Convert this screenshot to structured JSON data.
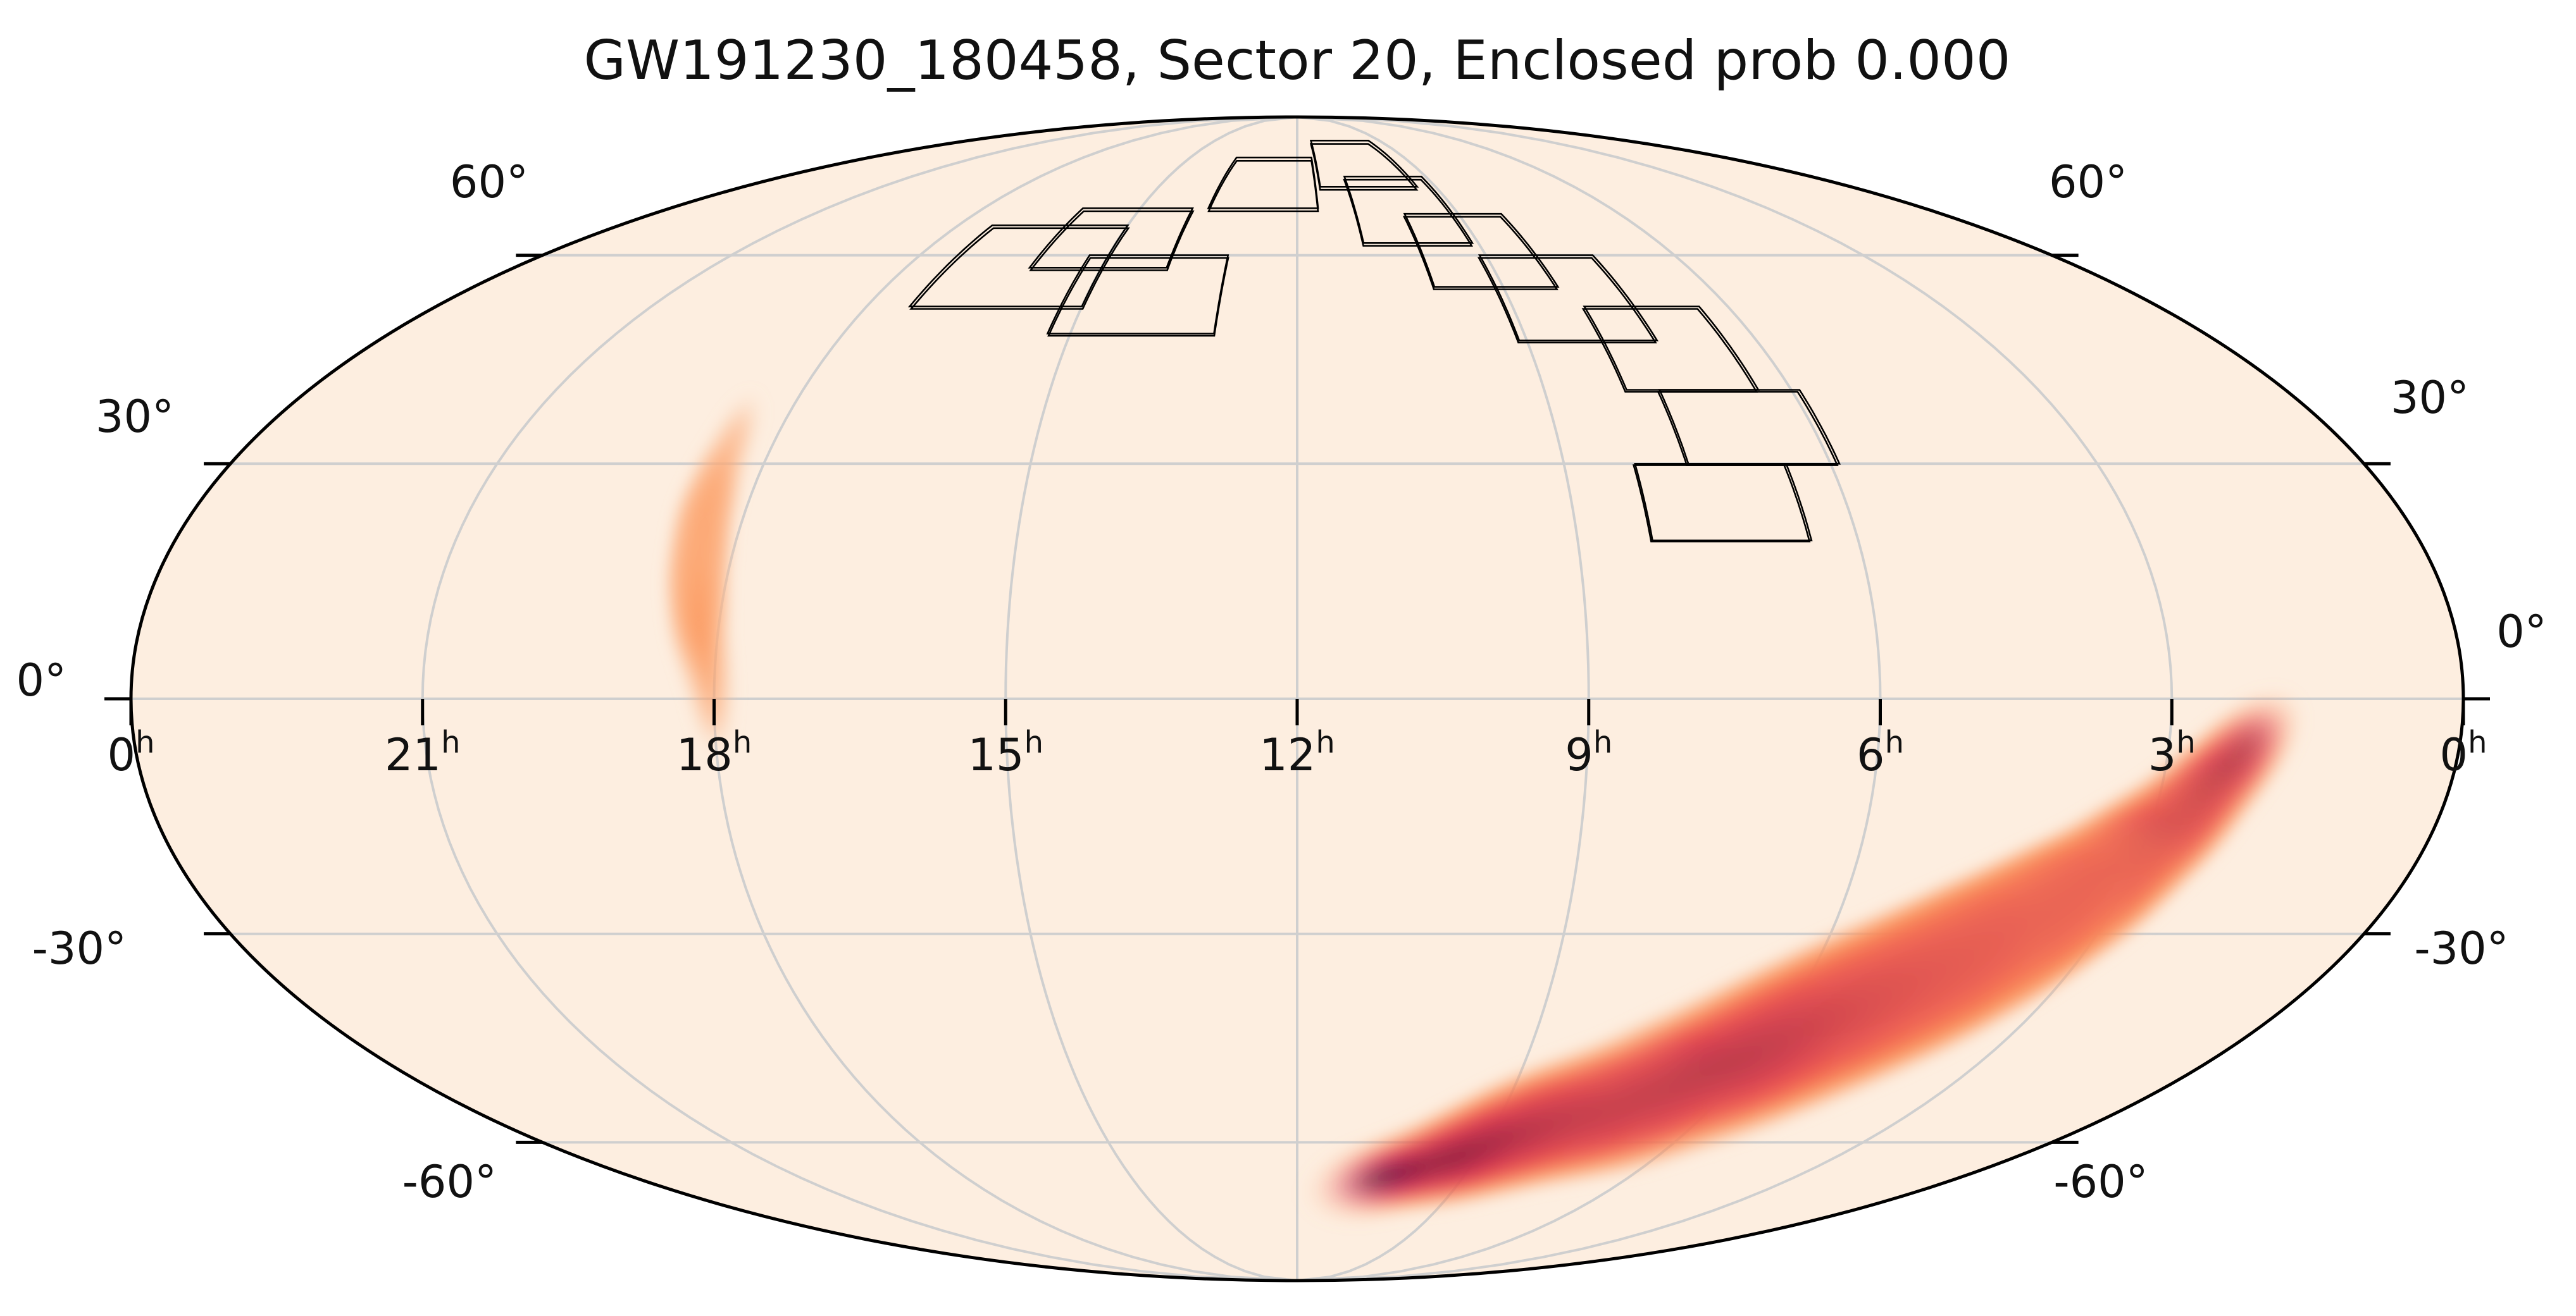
{
  "title": "GW191230_180458, Sector 20, Enclosed prob 0.000",
  "colors": {
    "background": "#fdeee0",
    "outline": "#000000",
    "grid": "#cfcfcf",
    "footprint": "#000000",
    "colormap": [
      "#fdeee0",
      "#fcc39e",
      "#fb8b4d",
      "#ea3f4d",
      "#b5134e",
      "#6e0c3c",
      "#2a0718"
    ]
  },
  "map": {
    "projection": "mollweide",
    "ra_tick_labels": [
      {
        "text": "0",
        "sup": "h",
        "ra_h": 24
      },
      {
        "text": "21",
        "sup": "h",
        "ra_h": 21
      },
      {
        "text": "18",
        "sup": "h",
        "ra_h": 18
      },
      {
        "text": "15",
        "sup": "h",
        "ra_h": 15
      },
      {
        "text": "12",
        "sup": "h",
        "ra_h": 12
      },
      {
        "text": "9",
        "sup": "h",
        "ra_h": 9
      },
      {
        "text": "6",
        "sup": "h",
        "ra_h": 6
      },
      {
        "text": "3",
        "sup": "h",
        "ra_h": 3
      },
      {
        "text": "0",
        "sup": "h",
        "ra_h": 0
      }
    ],
    "dec_tick_labels_left": [
      {
        "text": "60°",
        "dec": 60
      },
      {
        "text": "30°",
        "dec": 30
      },
      {
        "text": "0°",
        "dec": 0
      },
      {
        "text": "-30°",
        "dec": -30
      },
      {
        "text": "-60°",
        "dec": -60
      }
    ],
    "dec_tick_labels_right": [
      {
        "text": "60°",
        "dec": 60
      },
      {
        "text": "30°",
        "dec": 30
      },
      {
        "text": "0°",
        "dec": 0
      },
      {
        "text": "-30°",
        "dec": -30
      },
      {
        "text": "-60°",
        "dec": -60
      }
    ],
    "grid_ra_h": [
      3,
      6,
      9,
      12,
      15,
      18,
      21
    ],
    "grid_dec": [
      -60,
      -30,
      30,
      60
    ],
    "probability_regions": [
      {
        "id": "south-arc",
        "peak": 1.0,
        "path": [
          [
            2.2,
            -6
          ],
          [
            2.8,
            -16
          ],
          [
            3.4,
            -24
          ],
          [
            4.0,
            -30
          ],
          [
            4.7,
            -36
          ],
          [
            5.5,
            -42
          ],
          [
            6.3,
            -48
          ],
          [
            7.3,
            -54
          ],
          [
            8.4,
            -58
          ],
          [
            9.5,
            -63
          ],
          [
            10.8,
            -67
          ]
        ]
      },
      {
        "id": "north-blob",
        "peak": 0.45,
        "path": [
          [
            18.5,
            36
          ],
          [
            18.45,
            28
          ],
          [
            18.4,
            22
          ],
          [
            18.3,
            15
          ],
          [
            18.2,
            9
          ],
          [
            18.05,
            2
          ],
          [
            18.0,
            -4
          ]
        ]
      }
    ],
    "camera_footprints": [
      {
        "ra_min_h": 13.1,
        "ra_max_h": 15.3,
        "dec_min": 48,
        "dec_max": 60
      },
      {
        "ra_min_h": 15.0,
        "ra_max_h": 17.4,
        "dec_min": 52,
        "dec_max": 65
      },
      {
        "ra_min_h": 14.0,
        "ra_max_h": 16.1,
        "dec_min": 58,
        "dec_max": 68
      },
      {
        "ra_min_h": 11.6,
        "ra_max_h": 13.7,
        "dec_min": 68,
        "dec_max": 78
      },
      {
        "ra_min_h": 9.4,
        "ra_max_h": 11.5,
        "dec_min": 72,
        "dec_max": 82
      },
      {
        "ra_min_h": 6.5,
        "ra_max_h": 8.2,
        "dec_min": 20,
        "dec_max": 30
      },
      {
        "ra_min_h": 5.9,
        "ra_max_h": 7.6,
        "dec_min": 30,
        "dec_max": 40
      },
      {
        "ra_min_h": 6.4,
        "ra_max_h": 8.0,
        "dec_min": 40,
        "dec_max": 52
      },
      {
        "ra_min_h": 7.3,
        "ra_max_h": 9.1,
        "dec_min": 47,
        "dec_max": 60
      },
      {
        "ra_min_h": 8.2,
        "ra_max_h": 10.0,
        "dec_min": 55,
        "dec_max": 67
      },
      {
        "ra_min_h": 9.1,
        "ra_max_h": 10.9,
        "dec_min": 62,
        "dec_max": 74
      }
    ]
  }
}
